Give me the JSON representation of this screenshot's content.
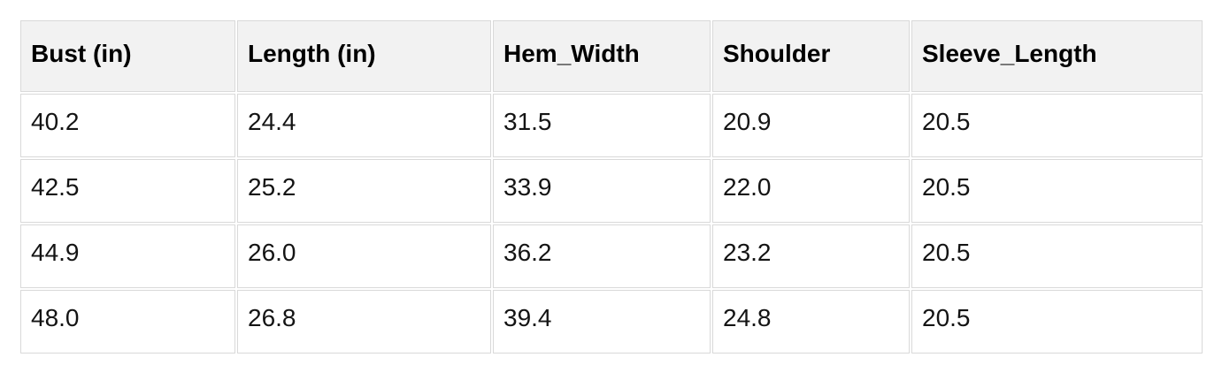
{
  "table": {
    "headers": [
      "Bust (in)",
      "Length (in)",
      "Hem_Width",
      "Shoulder",
      "Sleeve_Length"
    ],
    "rows": [
      [
        "40.2",
        "24.4",
        "31.5",
        "20.9",
        "20.5"
      ],
      [
        "42.5",
        "25.2",
        "33.9",
        "22.0",
        "20.5"
      ],
      [
        "44.9",
        "26.0",
        "36.2",
        "23.2",
        "20.5"
      ],
      [
        "48.0",
        "26.8",
        "39.4",
        "24.8",
        "20.5"
      ]
    ]
  },
  "chart_data": {
    "type": "table",
    "title": "",
    "columns": [
      "Bust (in)",
      "Length (in)",
      "Hem_Width",
      "Shoulder",
      "Sleeve_Length"
    ],
    "rows": [
      [
        40.2,
        24.4,
        31.5,
        20.9,
        20.5
      ],
      [
        42.5,
        25.2,
        33.9,
        22.0,
        20.5
      ],
      [
        44.9,
        26.0,
        36.2,
        23.2,
        20.5
      ],
      [
        48.0,
        26.8,
        39.4,
        24.8,
        20.5
      ]
    ]
  },
  "colors": {
    "header_bg": "#f2f2f2",
    "cell_border": "#d9d9d9",
    "header_text": "#000000",
    "cell_text": "#141414",
    "background": "#ffffff"
  }
}
